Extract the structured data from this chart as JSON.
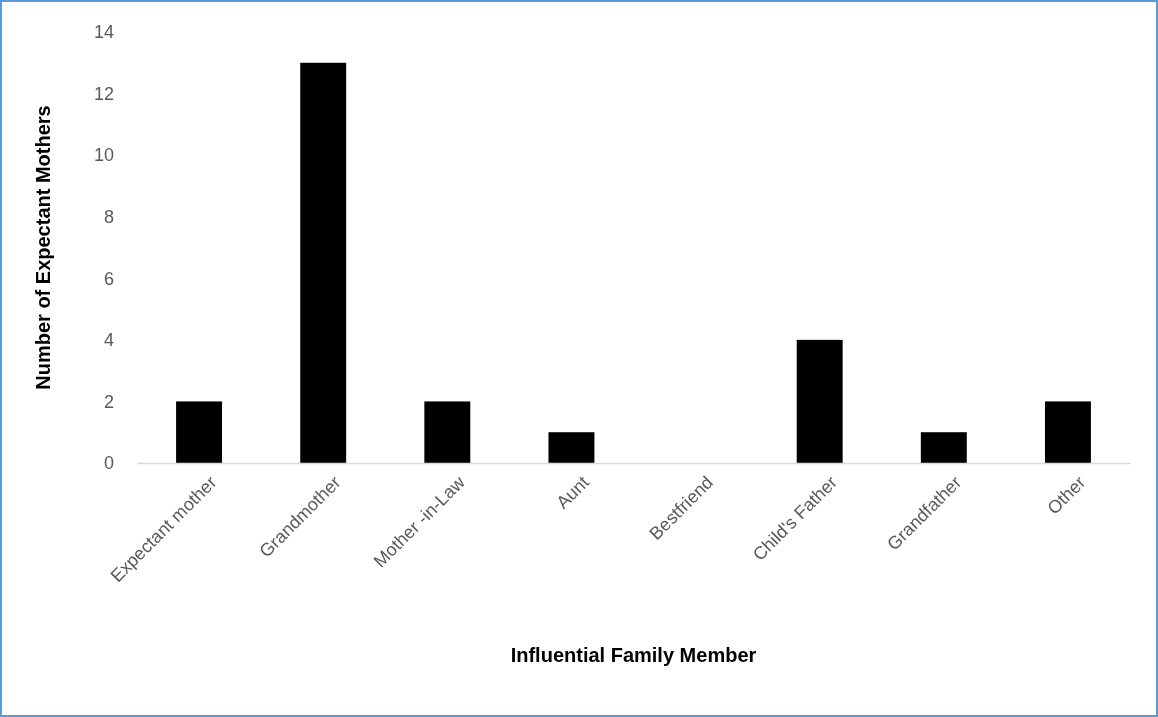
{
  "chart_data": {
    "type": "bar",
    "xlabel": "Influential Family Member",
    "ylabel": "Number of Expectant Mothers",
    "categories": [
      "Expectant mother",
      "Grandmother",
      "Mother -in-Law",
      "Aunt",
      "Bestfriend",
      "Child's Father",
      "Grandfather",
      "Other"
    ],
    "values": [
      2,
      13,
      2,
      1,
      0,
      4,
      1,
      2
    ],
    "color": "#000000",
    "ylim": [
      0,
      14
    ],
    "yticks": [
      0,
      2,
      4,
      6,
      8,
      10,
      12,
      14
    ]
  }
}
